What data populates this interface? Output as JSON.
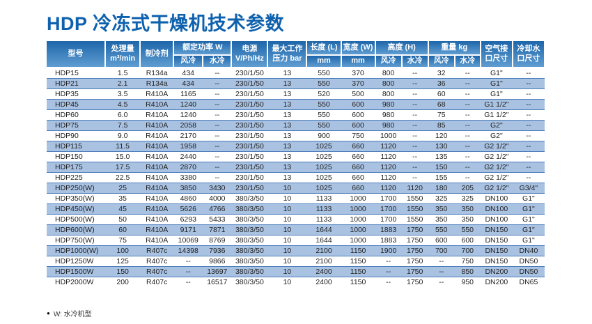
{
  "page": {
    "title": "HDP 冷冻式干燥机技术参数",
    "footnote_bullet": "●",
    "footnote": "W: 水冷机型"
  },
  "colors": {
    "title_blue": "#0e61ad",
    "header_gradient_top": "#1e66aa",
    "header_gradient_bottom": "#5f9dd1",
    "stripe_blue": "#a9c2e2",
    "row_line_blue": "#4a7cbb",
    "header_text": "#ffffff",
    "body_text": "#1f1f1f"
  },
  "table": {
    "header": {
      "model": "型号",
      "capacity": "处理量\nm³/min",
      "refrigerant": "制冷剂",
      "rated_power": "额定功率 W",
      "air_cooled": "风冷",
      "water_cooled": "水冷",
      "power_supply": "电源\nV/Ph/Hz",
      "max_pressure": "最大工作\n压力 bar",
      "length": "长度 (L)",
      "width": "宽度 (W)",
      "mm": "mm",
      "height": "高度 (H)",
      "weight": "重量 kg",
      "air_port": "空气接\n口尺寸",
      "water_port": "冷却水\n口尺寸"
    },
    "rows": [
      [
        "HDP15",
        "1.5",
        "R134a",
        "434",
        "--",
        "230/1/50",
        "13",
        "550",
        "370",
        "800",
        "--",
        "32",
        "--",
        "G1\"",
        "--"
      ],
      [
        "HDP21",
        "2.1",
        "R134a",
        "434",
        "--",
        "230/1/50",
        "13",
        "550",
        "370",
        "800",
        "--",
        "36",
        "--",
        "G1\"",
        "--"
      ],
      [
        "HDP35",
        "3.5",
        "R410A",
        "1165",
        "--",
        "230/1/50",
        "13",
        "520",
        "500",
        "800",
        "--",
        "60",
        "--",
        "G1\"",
        "--"
      ],
      [
        "HDP45",
        "4.5",
        "R410A",
        "1240",
        "--",
        "230/1/50",
        "13",
        "550",
        "600",
        "980",
        "--",
        "68",
        "--",
        "G1 1/2\"",
        "--"
      ],
      [
        "HDP60",
        "6.0",
        "R410A",
        "1240",
        "--",
        "230/1/50",
        "13",
        "550",
        "600",
        "980",
        "--",
        "75",
        "--",
        "G1 1/2\"",
        "--"
      ],
      [
        "HDP75",
        "7.5",
        "R410A",
        "2058",
        "--",
        "230/1/50",
        "13",
        "550",
        "600",
        "980",
        "--",
        "85",
        "--",
        "G2\"",
        "--"
      ],
      [
        "HDP90",
        "9.0",
        "R410A",
        "2170",
        "--",
        "230/1/50",
        "13",
        "900",
        "750",
        "1000",
        "--",
        "120",
        "--",
        "G2\"",
        "--"
      ],
      [
        "HDP115",
        "11.5",
        "R410A",
        "1958",
        "--",
        "230/1/50",
        "13",
        "1025",
        "660",
        "1120",
        "--",
        "130",
        "--",
        "G2 1/2\"",
        "--"
      ],
      [
        "HDP150",
        "15.0",
        "R410A",
        "2440",
        "--",
        "230/1/50",
        "13",
        "1025",
        "660",
        "1120",
        "--",
        "135",
        "--",
        "G2 1/2\"",
        "--"
      ],
      [
        "HDP175",
        "17.5",
        "R410A",
        "2870",
        "--",
        "230/1/50",
        "13",
        "1025",
        "660",
        "1120",
        "--",
        "150",
        "--",
        "G2 1/2\"",
        "--"
      ],
      [
        "HDP225",
        "22.5",
        "R410A",
        "3380",
        "--",
        "230/1/50",
        "13",
        "1025",
        "660",
        "1120",
        "--",
        "155",
        "--",
        "G2 1/2\"",
        "--"
      ],
      [
        "HDP250(W)",
        "25",
        "R410A",
        "3850",
        "3430",
        "230/1/50",
        "10",
        "1025",
        "660",
        "1120",
        "1120",
        "180",
        "205",
        "G2 1/2\"",
        "G3/4\""
      ],
      [
        "HDP350(W)",
        "35",
        "R410A",
        "4860",
        "4000",
        "380/3/50",
        "10",
        "1133",
        "1000",
        "1700",
        "1550",
        "325",
        "325",
        "DN100",
        "G1\""
      ],
      [
        "HDP450(W)",
        "45",
        "R410A",
        "5626",
        "4766",
        "380/3/50",
        "10",
        "1133",
        "1000",
        "1700",
        "1550",
        "350",
        "350",
        "DN100",
        "G1\""
      ],
      [
        "HDP500(W)",
        "50",
        "R410A",
        "6293",
        "5433",
        "380/3/50",
        "10",
        "1133",
        "1000",
        "1700",
        "1550",
        "350",
        "350",
        "DN100",
        "G1\""
      ],
      [
        "HDP600(W)",
        "60",
        "R410A",
        "9171",
        "7871",
        "380/3/50",
        "10",
        "1644",
        "1000",
        "1883",
        "1750",
        "550",
        "550",
        "DN150",
        "G1\""
      ],
      [
        "HDP750(W)",
        "75",
        "R410A",
        "10069",
        "8769",
        "380/3/50",
        "10",
        "1644",
        "1000",
        "1883",
        "1750",
        "600",
        "600",
        "DN150",
        "G1\""
      ],
      [
        "HDP1000(W)",
        "100",
        "R407c",
        "14398",
        "7936",
        "380/3/50",
        "10",
        "2100",
        "1150",
        "1900",
        "1750",
        "700",
        "700",
        "DN150",
        "DN40"
      ],
      [
        "HDP1250W",
        "125",
        "R407c",
        "--",
        "9866",
        "380/3/50",
        "10",
        "2100",
        "1150",
        "--",
        "1750",
        "--",
        "750",
        "DN150",
        "DN50"
      ],
      [
        "HDP1500W",
        "150",
        "R407c",
        "--",
        "13697",
        "380/3/50",
        "10",
        "2400",
        "1150",
        "--",
        "1750",
        "--",
        "850",
        "DN200",
        "DN50"
      ],
      [
        "HDP2000W",
        "200",
        "R407c",
        "--",
        "16517",
        "380/3/50",
        "10",
        "2400",
        "1150",
        "--",
        "1750",
        "--",
        "950",
        "DN200",
        "DN65"
      ]
    ]
  }
}
